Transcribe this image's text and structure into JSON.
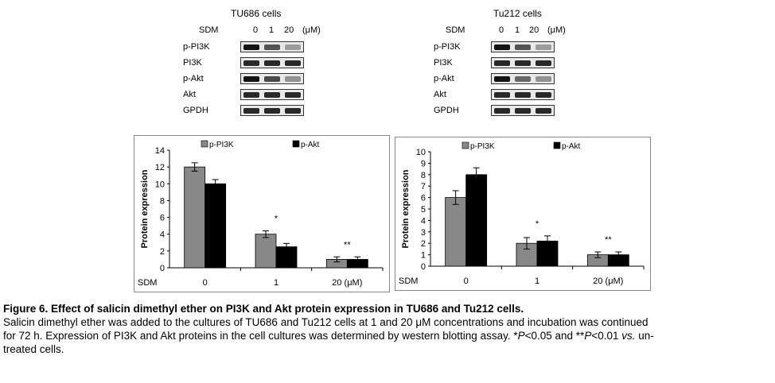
{
  "blots": [
    {
      "title": "TU686 cells",
      "treatment_label": "SDM",
      "doses": [
        "0",
        "1",
        "20"
      ],
      "unit": "(μM)",
      "rows": [
        {
          "label": "p-PI3K",
          "intensity": [
            1.0,
            0.7,
            0.35
          ]
        },
        {
          "label": "PI3K",
          "intensity": [
            0.9,
            0.9,
            0.9
          ]
        },
        {
          "label": "p-Akt",
          "intensity": [
            1.0,
            0.75,
            0.4
          ]
        },
        {
          "label": "Akt",
          "intensity": [
            0.9,
            0.9,
            0.9
          ]
        },
        {
          "label": "GPDH",
          "intensity": [
            0.9,
            0.9,
            0.9
          ]
        }
      ]
    },
    {
      "title": "Tu212 cells",
      "treatment_label": "SDM",
      "doses": [
        "0",
        "1",
        "20"
      ],
      "unit": "(μM)",
      "rows": [
        {
          "label": "p-PI3K",
          "intensity": [
            1.0,
            0.7,
            0.35
          ]
        },
        {
          "label": "PI3K",
          "intensity": [
            0.9,
            0.9,
            0.9
          ]
        },
        {
          "label": "p-Akt",
          "intensity": [
            1.0,
            0.6,
            0.4
          ]
        },
        {
          "label": "Akt",
          "intensity": [
            0.9,
            0.9,
            0.9
          ]
        },
        {
          "label": "GPDH",
          "intensity": [
            0.9,
            0.9,
            0.9
          ]
        }
      ]
    }
  ],
  "chart_data": [
    {
      "type": "bar",
      "categories": [
        "0",
        "1",
        "20 (μM)"
      ],
      "xlabel": "SDM",
      "ylabel": "Protein expression",
      "ylim": [
        0,
        14
      ],
      "yticks": [
        0,
        2,
        4,
        6,
        8,
        10,
        12,
        14
      ],
      "legend_position": "top",
      "series": [
        {
          "name": "p-PI3K",
          "color": "#888888",
          "values": [
            12,
            4,
            1
          ],
          "errors": [
            0.5,
            0.4,
            0.3
          ]
        },
        {
          "name": "p-Akt",
          "color": "#000000",
          "values": [
            10,
            2.5,
            1
          ],
          "errors": [
            0.5,
            0.4,
            0.3
          ]
        }
      ],
      "annotations": [
        "",
        "*",
        "**"
      ]
    },
    {
      "type": "bar",
      "categories": [
        "0",
        "1",
        "20 (μM)"
      ],
      "xlabel": "SDM",
      "ylabel": "Protein expression",
      "ylim": [
        0,
        10
      ],
      "yticks": [
        0,
        1,
        2,
        3,
        4,
        5,
        6,
        7,
        8,
        9,
        10
      ],
      "legend_position": "top",
      "series": [
        {
          "name": "p-PI3K",
          "color": "#888888",
          "values": [
            6,
            2,
            1
          ],
          "errors": [
            0.6,
            0.5,
            0.25
          ]
        },
        {
          "name": "p-Akt",
          "color": "#000000",
          "values": [
            8,
            2.2,
            1
          ],
          "errors": [
            0.6,
            0.45,
            0.25
          ]
        }
      ],
      "annotations": [
        "",
        "*",
        "**"
      ]
    }
  ],
  "caption": {
    "title": "Figure 6. Effect of salicin dimethyl ether on PI3K and Akt protein expression in TU686 and Tu212 cells.",
    "line1": "Salicin dimethyl ether was added to the cultures of TU686 and Tu212 cells at 1 and 20 μM concentrations and incubation was continued",
    "line2_a": "for 72 h. Expression of PI3K and Akt proteins in the cell cultures was determined by western blotting assay. *",
    "line2_p1": "P",
    "line2_b": "<0.05 and **",
    "line2_p2": "P",
    "line2_c": "<0.01 ",
    "line2_vs": "vs.",
    "line2_d": " un-",
    "line3": "treated cells."
  }
}
